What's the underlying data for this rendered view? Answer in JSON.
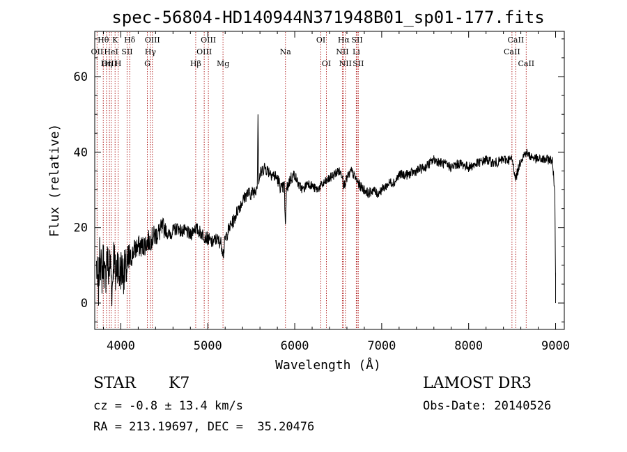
{
  "chart_data": {
    "type": "line",
    "title": "spec-56804-HD140944N371948B01_sp01-177.fits",
    "xlabel": "Wavelength (Å)",
    "ylabel": "Flux (relative)",
    "xlim": [
      3700,
      9100
    ],
    "ylim": [
      -7,
      72
    ],
    "xticks": [
      4000,
      5000,
      6000,
      7000,
      8000,
      9000
    ],
    "xtick_labels": [
      "4000",
      "5000",
      "6000",
      "7000",
      "8000",
      "9000"
    ],
    "yticks": [
      0,
      20,
      40,
      60
    ],
    "ytick_labels": [
      "0",
      "20",
      "40",
      "60"
    ],
    "grid": false,
    "series": [
      {
        "name": "flux",
        "x": [
          3720,
          3740,
          3760,
          3780,
          3800,
          3820,
          3840,
          3860,
          3880,
          3900,
          3920,
          3940,
          3960,
          3980,
          4000,
          4050,
          4100,
          4150,
          4200,
          4250,
          4300,
          4350,
          4400,
          4450,
          4500,
          4550,
          4600,
          4650,
          4700,
          4750,
          4800,
          4850,
          4900,
          4950,
          5000,
          5050,
          5100,
          5150,
          5180,
          5200,
          5250,
          5300,
          5350,
          5400,
          5450,
          5500,
          5550,
          5570,
          5577,
          5585,
          5600,
          5650,
          5700,
          5750,
          5800,
          5850,
          5880,
          5893,
          5905,
          5950,
          6000,
          6050,
          6100,
          6150,
          6200,
          6250,
          6300,
          6350,
          6400,
          6450,
          6500,
          6550,
          6563,
          6600,
          6650,
          6700,
          6750,
          6800,
          6850,
          6900,
          6950,
          7000,
          7050,
          7100,
          7150,
          7200,
          7300,
          7400,
          7500,
          7600,
          7700,
          7800,
          7900,
          8000,
          8100,
          8200,
          8300,
          8400,
          8500,
          8542,
          8600,
          8662,
          8700,
          8800,
          8900,
          8960,
          8990,
          9000
        ],
        "y": [
          10,
          2,
          14,
          7,
          12,
          5,
          13,
          8,
          11,
          3,
          14,
          6,
          12,
          7,
          9,
          8,
          11,
          14,
          15,
          15,
          16,
          17,
          18,
          19,
          20,
          18,
          19,
          20,
          19,
          19,
          18,
          20,
          19,
          18,
          17,
          16,
          17,
          16,
          13,
          17,
          20,
          22,
          25,
          27,
          29,
          29,
          30,
          32,
          50,
          32,
          34,
          36,
          35,
          34,
          33,
          30,
          31,
          20,
          30,
          33,
          34,
          31,
          30,
          32,
          31,
          30,
          31,
          32,
          33,
          34,
          35,
          34,
          31,
          33,
          35,
          33,
          31,
          30,
          29,
          30,
          29,
          30,
          31,
          32,
          32,
          34,
          34,
          35,
          36,
          38,
          37,
          36,
          37,
          36,
          37,
          38,
          37,
          38,
          38,
          33,
          38,
          40,
          39,
          38,
          38,
          38,
          30,
          8
        ]
      }
    ],
    "line_markers": [
      {
        "label": "Hθ",
        "x": 3798,
        "row": 1
      },
      {
        "label": "OII",
        "x": 3727,
        "row": 2
      },
      {
        "label": "OIII",
        "x": 3869,
        "row": 3
      },
      {
        "label": "Hη",
        "x": 3835,
        "row": 3
      },
      {
        "label": "K",
        "x": 3934,
        "row": 1
      },
      {
        "label": "HeI",
        "x": 3889,
        "row": 2
      },
      {
        "label": "H",
        "x": 3969,
        "row": 3
      },
      {
        "label": "SII",
        "x": 4072,
        "row": 2
      },
      {
        "label": "Hδ",
        "x": 4102,
        "row": 1
      },
      {
        "label": "OIII",
        "x": 4363,
        "row": 1
      },
      {
        "label": "Hγ",
        "x": 4340,
        "row": 2
      },
      {
        "label": "G",
        "x": 4305,
        "row": 3
      },
      {
        "label": "Hβ",
        "x": 4861,
        "row": 3
      },
      {
        "label": "OIII",
        "x": 5007,
        "row": 1
      },
      {
        "label": "OIII",
        "x": 4959,
        "row": 2
      },
      {
        "label": "Mg",
        "x": 5175,
        "row": 3
      },
      {
        "label": "Na",
        "x": 5893,
        "row": 2
      },
      {
        "label": "OI",
        "x": 6300,
        "row": 1
      },
      {
        "label": "OI",
        "x": 6364,
        "row": 3
      },
      {
        "label": "Hα",
        "x": 6563,
        "row": 1
      },
      {
        "label": "NII",
        "x": 6548,
        "row": 2
      },
      {
        "label": "NII",
        "x": 6583,
        "row": 3
      },
      {
        "label": "SII",
        "x": 6717,
        "row": 1
      },
      {
        "label": "Li",
        "x": 6708,
        "row": 2
      },
      {
        "label": "SII",
        "x": 6731,
        "row": 3
      },
      {
        "label": "CaII",
        "x": 8542,
        "row": 1
      },
      {
        "label": "CaII",
        "x": 8498,
        "row": 2
      },
      {
        "label": "CaII",
        "x": 8662,
        "row": 3
      }
    ]
  },
  "info": {
    "object_class": "STAR",
    "subclass": "K7",
    "survey": "LAMOST DR3",
    "cz": "cz = -0.8 ± 13.4 km/s",
    "obs_date": "Obs-Date: 20140526",
    "radec": "RA = 213.19697, DEC =  35.20476"
  },
  "colors": {
    "spectrum": "#000000",
    "marker_line": "#b22222",
    "axes": "#000000"
  }
}
